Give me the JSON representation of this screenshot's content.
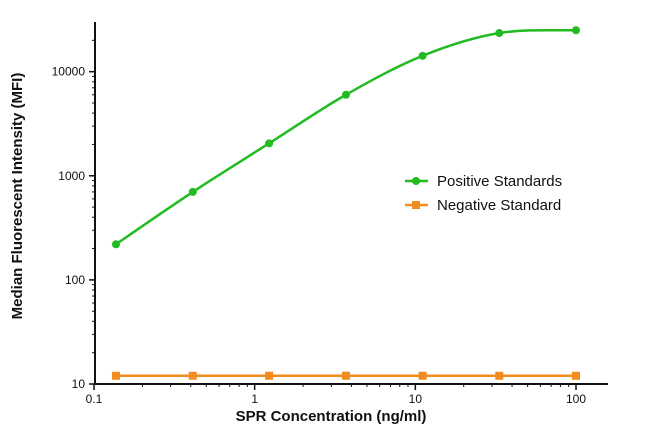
{
  "chart_data": {
    "type": "line",
    "title": "",
    "xlabel": "SPR Concentration (ng/ml)",
    "ylabel": "Median Fluorescent Intensity (MFI)",
    "xscale": "log",
    "yscale": "log",
    "xlim": [
      0.1,
      100
    ],
    "ylim": [
      10,
      30000
    ],
    "x_ticks": [
      0.1,
      1,
      10,
      100
    ],
    "x_tick_labels": [
      "0.1",
      "1",
      "10",
      "100"
    ],
    "y_ticks": [
      10,
      100,
      1000,
      10000
    ],
    "y_tick_labels": [
      "10",
      "100",
      "1000",
      "10000"
    ],
    "grid": false,
    "legend_position": "right",
    "series": [
      {
        "name": "Positive Standards",
        "color": "#22bb22",
        "marker": "circle",
        "x": [
          0.137,
          0.412,
          1.23,
          3.7,
          11.1,
          33.3,
          100
        ],
        "y": [
          220,
          700,
          2050,
          6000,
          14200,
          23500,
          25000
        ]
      },
      {
        "name": "Negative Standard",
        "color": "#f28c1e",
        "marker": "square",
        "x": [
          0.137,
          0.412,
          1.23,
          3.7,
          11.1,
          33.3,
          100
        ],
        "y": [
          12,
          12,
          12,
          12,
          12,
          12,
          12
        ]
      }
    ]
  }
}
